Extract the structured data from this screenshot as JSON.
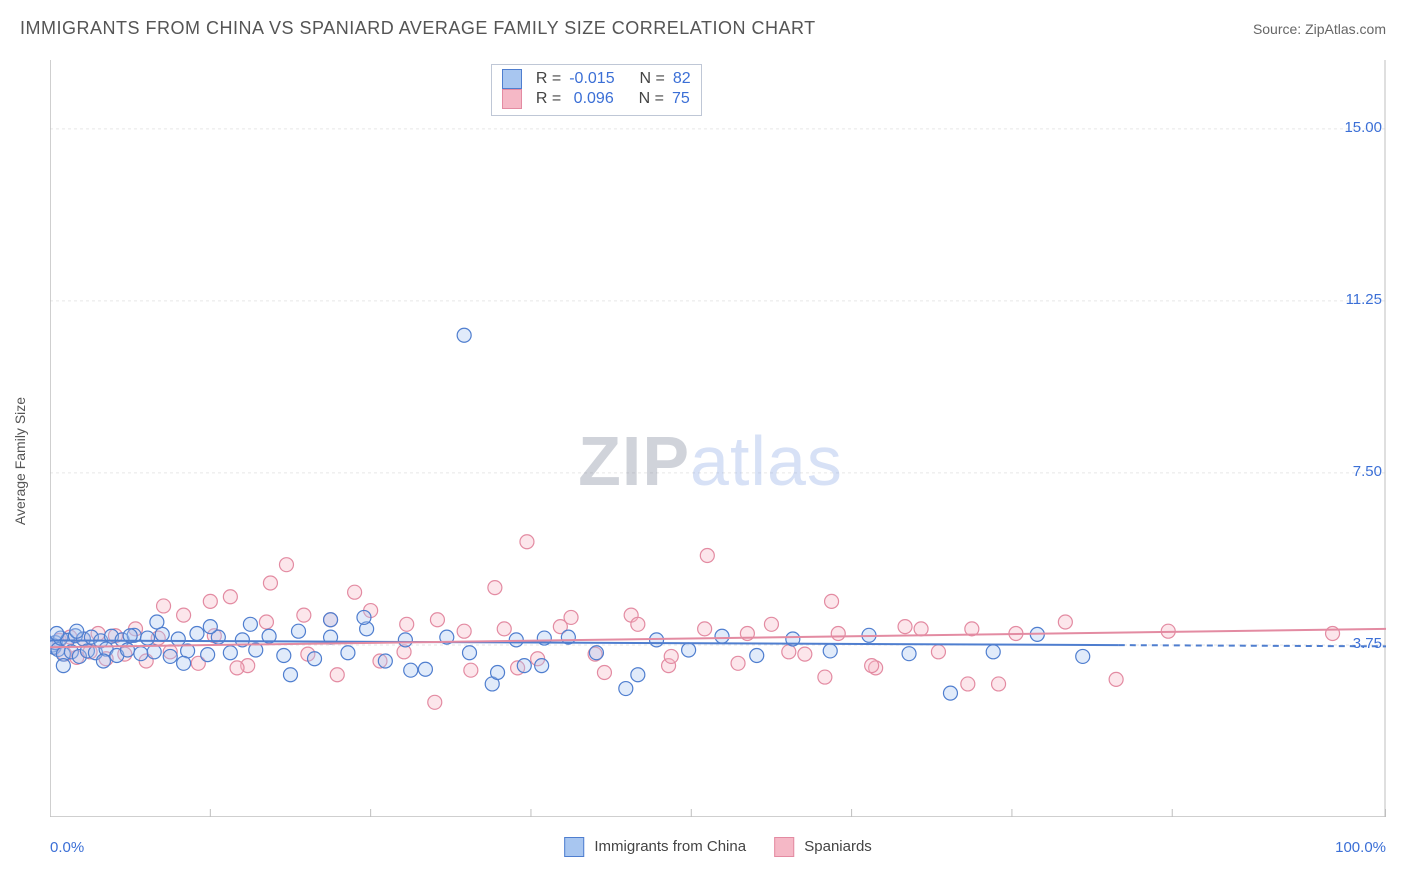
{
  "title": "IMMIGRANTS FROM CHINA VS SPANIARD AVERAGE FAMILY SIZE CORRELATION CHART",
  "source_prefix": "Source: ",
  "source_name": "ZipAtlas.com",
  "ylabel": "Average Family Size",
  "watermark_a": "ZIP",
  "watermark_b": "atlas",
  "chart": {
    "type": "scatter",
    "xlim": [
      0,
      100
    ],
    "ylim": [
      0,
      16.5
    ],
    "x_tick_positions": [
      0,
      12,
      24,
      36,
      48,
      60,
      72,
      84,
      100
    ],
    "x_tick_labels_shown": {
      "0": "0.0%",
      "100": "100.0%"
    },
    "y_gridlines": [
      3.75,
      7.5,
      11.25,
      15.0
    ],
    "y_tick_labels": [
      "3.75",
      "7.50",
      "11.25",
      "15.00"
    ],
    "background_color": "#ffffff",
    "grid_color": "#e6e6e6",
    "axis_color": "#bfbfbf",
    "marker_radius": 7,
    "marker_stroke_width": 1.2,
    "marker_fill_opacity": 0.35,
    "trendline_width": 2,
    "trendline_dash": "6,5"
  },
  "series": {
    "a": {
      "label": "Immigrants from China",
      "fill": "#a8c6f0",
      "stroke": "#4f7ecf",
      "R": "-0.015",
      "N": "82",
      "trend": {
        "y_at_x0": 3.85,
        "y_at_x100": 3.72,
        "solid_until_x": 80
      },
      "points": [
        [
          0.2,
          3.75
        ],
        [
          0.3,
          3.7
        ],
        [
          0.4,
          3.8
        ],
        [
          0.6,
          3.65
        ],
        [
          0.8,
          3.9
        ],
        [
          1.0,
          3.55
        ],
        [
          1.3,
          3.85
        ],
        [
          1.6,
          3.6
        ],
        [
          1.9,
          3.95
        ],
        [
          2.2,
          3.5
        ],
        [
          2.5,
          3.88
        ],
        [
          2.8,
          3.62
        ],
        [
          3.1,
          3.92
        ],
        [
          3.4,
          3.58
        ],
        [
          3.8,
          3.84
        ],
        [
          4.2,
          3.66
        ],
        [
          4.6,
          3.94
        ],
        [
          5.0,
          3.52
        ],
        [
          5.4,
          3.86
        ],
        [
          5.8,
          3.64
        ],
        [
          6.3,
          3.96
        ],
        [
          6.8,
          3.56
        ],
        [
          7.3,
          3.9
        ],
        [
          7.8,
          3.6
        ],
        [
          8.4,
          3.98
        ],
        [
          9.0,
          3.5
        ],
        [
          9.6,
          3.88
        ],
        [
          10.3,
          3.62
        ],
        [
          11.0,
          4.0
        ],
        [
          11.8,
          3.54
        ],
        [
          12.6,
          3.92
        ],
        [
          13.5,
          3.58
        ],
        [
          14.4,
          3.86
        ],
        [
          15.4,
          3.64
        ],
        [
          16.4,
          3.94
        ],
        [
          17.5,
          3.52
        ],
        [
          18.6,
          4.05
        ],
        [
          19.8,
          3.45
        ],
        [
          21.0,
          3.92
        ],
        [
          22.3,
          3.58
        ],
        [
          23.7,
          4.1
        ],
        [
          25.1,
          3.4
        ],
        [
          26.6,
          3.86
        ],
        [
          28.1,
          3.22
        ],
        [
          29.7,
          3.92
        ],
        [
          31.4,
          3.58
        ],
        [
          33.1,
          2.9
        ],
        [
          34.9,
          3.86
        ],
        [
          31.0,
          10.5
        ],
        [
          36.8,
          3.3
        ],
        [
          38.8,
          3.92
        ],
        [
          40.9,
          3.58
        ],
        [
          43.1,
          2.8
        ],
        [
          45.4,
          3.86
        ],
        [
          47.8,
          3.64
        ],
        [
          50.3,
          3.94
        ],
        [
          52.9,
          3.52
        ],
        [
          55.6,
          3.88
        ],
        [
          58.4,
          3.62
        ],
        [
          61.3,
          3.96
        ],
        [
          64.3,
          3.56
        ],
        [
          67.4,
          2.7
        ],
        [
          70.6,
          3.6
        ],
        [
          73.9,
          3.98
        ],
        [
          77.3,
          3.5
        ],
        [
          44.0,
          3.1
        ],
        [
          35.5,
          3.3
        ],
        [
          27.0,
          3.2
        ],
        [
          21.0,
          4.3
        ],
        [
          23.5,
          4.35
        ],
        [
          18.0,
          3.1
        ],
        [
          15.0,
          4.2
        ],
        [
          12.0,
          4.15
        ],
        [
          10.0,
          3.35
        ],
        [
          8.0,
          4.25
        ],
        [
          6.0,
          3.95
        ],
        [
          4.0,
          3.4
        ],
        [
          2.0,
          4.05
        ],
        [
          1.0,
          3.3
        ],
        [
          0.5,
          4.0
        ],
        [
          33.5,
          3.15
        ],
        [
          37.0,
          3.9
        ]
      ]
    },
    "b": {
      "label": "Spaniards",
      "fill": "#f5b8c6",
      "stroke": "#e38ba2",
      "R": "0.096",
      "N": "75",
      "trend": {
        "y_at_x0": 3.7,
        "y_at_x100": 4.1,
        "solid_until_x": 100
      },
      "points": [
        [
          0.3,
          3.7
        ],
        [
          0.7,
          3.85
        ],
        [
          1.1,
          3.55
        ],
        [
          1.5,
          3.92
        ],
        [
          2.0,
          3.48
        ],
        [
          2.5,
          3.88
        ],
        [
          3.0,
          3.6
        ],
        [
          3.6,
          4.0
        ],
        [
          4.2,
          3.45
        ],
        [
          4.9,
          3.95
        ],
        [
          5.6,
          3.55
        ],
        [
          6.4,
          4.1
        ],
        [
          7.2,
          3.4
        ],
        [
          8.1,
          3.9
        ],
        [
          9.0,
          3.6
        ],
        [
          10.0,
          4.4
        ],
        [
          11.1,
          3.35
        ],
        [
          12.3,
          3.95
        ],
        [
          13.5,
          4.8
        ],
        [
          14.8,
          3.3
        ],
        [
          16.2,
          4.25
        ],
        [
          17.7,
          5.5
        ],
        [
          19.3,
          3.55
        ],
        [
          21.0,
          4.3
        ],
        [
          22.8,
          4.9
        ],
        [
          24.7,
          3.4
        ],
        [
          26.7,
          4.2
        ],
        [
          28.8,
          2.5
        ],
        [
          31.0,
          4.05
        ],
        [
          33.3,
          5.0
        ],
        [
          35.7,
          6.0
        ],
        [
          35.0,
          3.25
        ],
        [
          38.2,
          4.15
        ],
        [
          40.8,
          3.55
        ],
        [
          43.5,
          4.4
        ],
        [
          46.3,
          3.3
        ],
        [
          49.2,
          5.7
        ],
        [
          52.2,
          4.0
        ],
        [
          55.3,
          3.6
        ],
        [
          58.5,
          4.7
        ],
        [
          61.8,
          3.25
        ],
        [
          65.2,
          4.1
        ],
        [
          68.7,
          2.9
        ],
        [
          72.3,
          4.0
        ],
        [
          58.0,
          3.05
        ],
        [
          76.0,
          4.25
        ],
        [
          79.8,
          3.0
        ],
        [
          83.7,
          4.05
        ],
        [
          96.0,
          4.0
        ],
        [
          8.5,
          4.6
        ],
        [
          12.0,
          4.7
        ],
        [
          14.0,
          3.25
        ],
        [
          16.5,
          5.1
        ],
        [
          19.0,
          4.4
        ],
        [
          21.5,
          3.1
        ],
        [
          24.0,
          4.5
        ],
        [
          26.5,
          3.6
        ],
        [
          29.0,
          4.3
        ],
        [
          31.5,
          3.2
        ],
        [
          34.0,
          4.1
        ],
        [
          36.5,
          3.45
        ],
        [
          39.0,
          4.35
        ],
        [
          41.5,
          3.15
        ],
        [
          44.0,
          4.2
        ],
        [
          46.5,
          3.5
        ],
        [
          49.0,
          4.1
        ],
        [
          51.5,
          3.35
        ],
        [
          54.0,
          4.2
        ],
        [
          56.5,
          3.55
        ],
        [
          59.0,
          4.0
        ],
        [
          61.5,
          3.3
        ],
        [
          64.0,
          4.15
        ],
        [
          71.0,
          2.9
        ],
        [
          66.5,
          3.6
        ],
        [
          69.0,
          4.1
        ]
      ]
    }
  },
  "stats_legend": {
    "R_prefix": "R = ",
    "N_prefix": "N = "
  }
}
